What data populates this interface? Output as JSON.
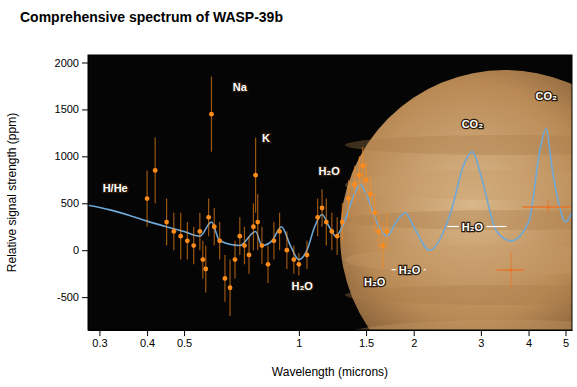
{
  "chart_data": {
    "type": "scatter",
    "title": "Comprehensive spectrum of WASP-39b",
    "x_label": "Wavelength (microns)",
    "y_label": "Relative signal strength (ppm)",
    "log": "x",
    "grid": false,
    "xlim": [
      0.28,
      5.2
    ],
    "xticks": [
      0.3,
      0.4,
      0.5,
      1,
      1.5,
      2,
      3,
      4,
      5
    ],
    "ylim": [
      -850,
      2080
    ],
    "yticks": [
      -500,
      0,
      500,
      1000,
      1500,
      2000
    ],
    "series": [
      {
        "type": "line",
        "color": "#6fa8d6",
        "x": [
          0.28,
          0.32,
          0.36,
          0.4,
          0.45,
          0.5,
          0.55,
          0.59,
          0.62,
          0.7,
          0.77,
          0.8,
          0.85,
          0.9,
          0.95,
          1.0,
          1.05,
          1.1,
          1.15,
          1.2,
          1.25,
          1.3,
          1.4,
          1.45,
          1.5,
          1.6,
          1.7,
          1.8,
          1.9,
          2.0,
          2.2,
          2.5,
          2.7,
          2.85,
          3.0,
          3.3,
          3.6,
          4.0,
          4.3,
          4.45,
          4.6,
          4.8,
          5.0,
          5.2
        ],
        "values": [
          480,
          430,
          370,
          310,
          250,
          200,
          150,
          300,
          100,
          50,
          200,
          50,
          100,
          250,
          50,
          -100,
          0,
          250,
          380,
          250,
          150,
          250,
          600,
          700,
          600,
          300,
          150,
          300,
          400,
          250,
          0,
          400,
          900,
          1050,
          800,
          200,
          100,
          300,
          1100,
          1300,
          900,
          500,
          300,
          400
        ]
      },
      {
        "type": "scatter",
        "color": "#ff8c1a",
        "x": [
          0.4,
          0.42,
          0.45,
          0.47,
          0.49,
          0.51,
          0.53,
          0.55,
          0.56,
          0.57,
          0.58,
          0.59,
          0.6,
          0.62,
          0.64,
          0.66,
          0.68,
          0.7,
          0.72,
          0.74,
          0.76,
          0.77,
          0.78,
          0.8,
          0.83,
          0.86,
          0.89,
          0.93,
          0.97,
          1.0,
          1.05,
          1.12,
          1.15,
          1.18,
          1.22,
          1.26,
          1.3,
          1.35,
          1.4,
          1.44,
          1.47,
          1.5,
          1.54,
          1.58,
          1.62,
          1.66,
          1.7
        ],
        "values": [
          550,
          850,
          300,
          200,
          150,
          100,
          50,
          200,
          -100,
          -200,
          350,
          1450,
          250,
          100,
          -300,
          -400,
          -100,
          150,
          50,
          -50,
          250,
          800,
          300,
          50,
          -150,
          100,
          200,
          0,
          -100,
          -150,
          -50,
          350,
          450,
          300,
          200,
          150,
          300,
          550,
          700,
          800,
          900,
          750,
          600,
          400,
          200,
          50,
          200
        ],
        "errors": [
          300,
          350,
          250,
          200,
          250,
          200,
          200,
          200,
          200,
          250,
          200,
          400,
          200,
          200,
          250,
          300,
          200,
          200,
          200,
          200,
          250,
          400,
          300,
          200,
          200,
          200,
          200,
          200,
          150,
          120,
          150,
          200,
          200,
          250,
          200,
          200,
          200,
          200,
          200,
          200,
          200,
          200,
          200,
          200,
          200,
          250,
          200
        ]
      },
      {
        "type": "scatter",
        "color": "#e8742a",
        "x": [
          3.6,
          4.5
        ],
        "values": [
          -210,
          460
        ],
        "errors": [
          200,
          80
        ],
        "x_errors": [
          0.3,
          0.65
        ]
      }
    ],
    "annotations": [
      {
        "text": "H/He",
        "x": 0.33,
        "y": 620
      },
      {
        "text": "Na",
        "x": 0.7,
        "y": 1700
      },
      {
        "text": "K",
        "x": 0.82,
        "y": 1150
      },
      {
        "text": "H₂O",
        "x": 1.02,
        "y": -420
      },
      {
        "text": "H₂O",
        "x": 1.2,
        "y": 800
      },
      {
        "text": "H₂O",
        "x": 1.58,
        "y": -380
      },
      {
        "text": "H₂O",
        "x": 1.95,
        "y": -250,
        "x_range": [
          1.75,
          2.15
        ]
      },
      {
        "text": "H₂O",
        "x": 2.85,
        "y": 210,
        "x_range": [
          2.45,
          3.5
        ]
      },
      {
        "text": "CO₂",
        "x": 2.85,
        "y": 1300
      },
      {
        "text": "CO₂",
        "x": 4.45,
        "y": 1600
      }
    ]
  }
}
